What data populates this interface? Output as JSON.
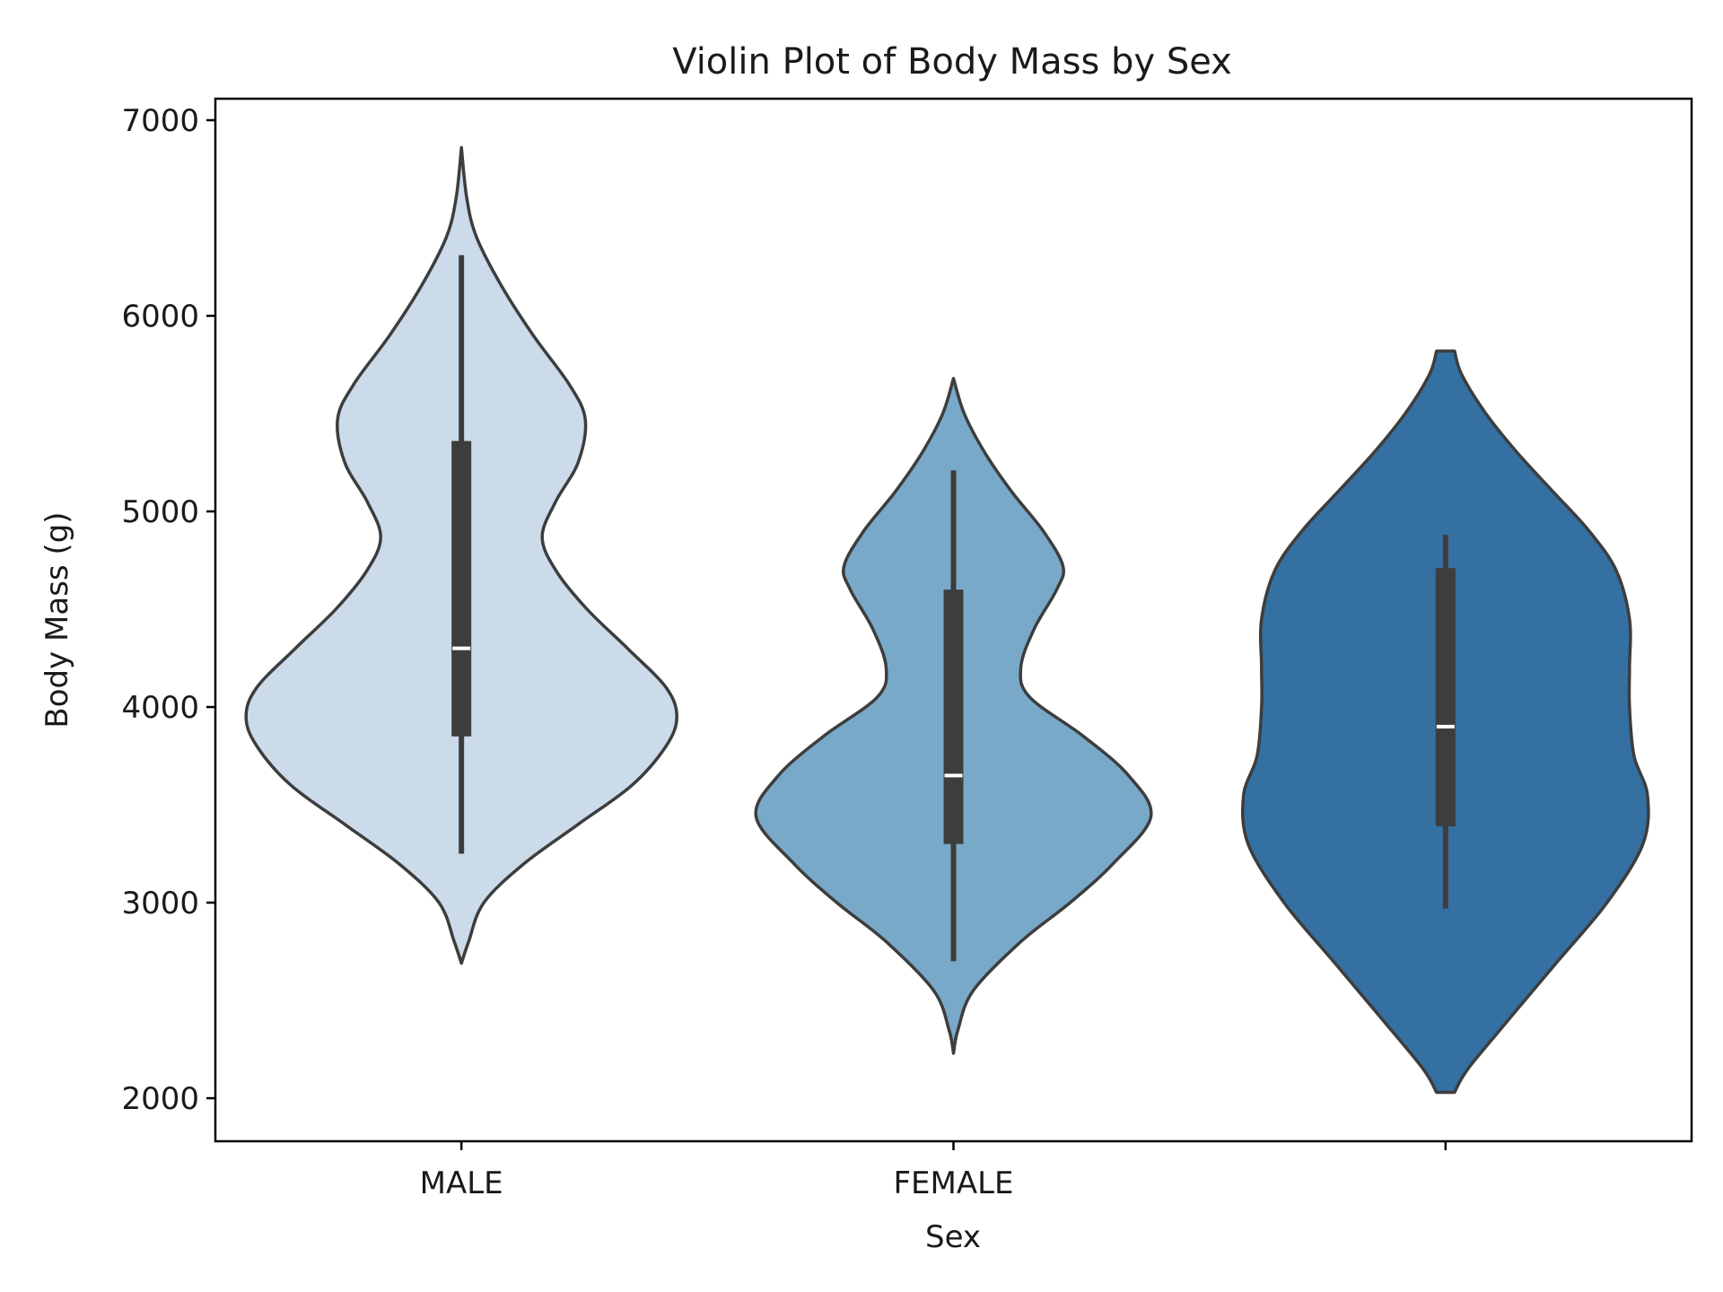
{
  "chart_data": {
    "type": "violin",
    "title": "Violin Plot of Body Mass by Sex",
    "xlabel": "Sex",
    "ylabel": "Body Mass (g)",
    "ylim": [
      1780,
      7110
    ],
    "yticks": [
      2000,
      3000,
      4000,
      5000,
      6000,
      7000
    ],
    "grid": false,
    "legend": "none",
    "outline_color": "#3d3d3d",
    "groups": [
      {
        "label": "MALE",
        "color": "#cbdbea",
        "density": [
          [
            2690,
            0
          ],
          [
            2800,
            8
          ],
          [
            3000,
            25
          ],
          [
            3200,
            70
          ],
          [
            3400,
            130
          ],
          [
            3600,
            190
          ],
          [
            3800,
            228
          ],
          [
            3950,
            240
          ],
          [
            4100,
            228
          ],
          [
            4300,
            185
          ],
          [
            4500,
            140
          ],
          [
            4700,
            105
          ],
          [
            4870,
            90
          ],
          [
            5050,
            105
          ],
          [
            5250,
            130
          ],
          [
            5470,
            138
          ],
          [
            5650,
            120
          ],
          [
            5900,
            80
          ],
          [
            6150,
            45
          ],
          [
            6400,
            17
          ],
          [
            6600,
            6
          ],
          [
            6860,
            0
          ]
        ],
        "whisker": [
          3250,
          6310
        ],
        "quartiles": [
          3850,
          5360
        ],
        "median": 4300
      },
      {
        "label": "FEMALE",
        "color": "#79a9c9",
        "density": [
          [
            2230,
            0
          ],
          [
            2350,
            5
          ],
          [
            2550,
            22
          ],
          [
            2800,
            75
          ],
          [
            3000,
            130
          ],
          [
            3200,
            178
          ],
          [
            3440,
            220
          ],
          [
            3650,
            195
          ],
          [
            3850,
            145
          ],
          [
            4050,
            85
          ],
          [
            4200,
            75
          ],
          [
            4400,
            90
          ],
          [
            4600,
            115
          ],
          [
            4720,
            122
          ],
          [
            4900,
            100
          ],
          [
            5100,
            65
          ],
          [
            5300,
            35
          ],
          [
            5500,
            12
          ],
          [
            5680,
            0
          ]
        ],
        "whisker": [
          2700,
          5210
        ],
        "quartiles": [
          3300,
          4600
        ],
        "median": 3650
      },
      {
        "label": "",
        "color": "#3470a2",
        "density": [
          [
            2030,
            10
          ],
          [
            2150,
            25
          ],
          [
            2400,
            70
          ],
          [
            2700,
            125
          ],
          [
            3000,
            180
          ],
          [
            3300,
            220
          ],
          [
            3550,
            225
          ],
          [
            3750,
            210
          ],
          [
            4000,
            205
          ],
          [
            4200,
            205
          ],
          [
            4450,
            205
          ],
          [
            4700,
            190
          ],
          [
            4900,
            160
          ],
          [
            5100,
            120
          ],
          [
            5300,
            80
          ],
          [
            5500,
            45
          ],
          [
            5700,
            18
          ],
          [
            5820,
            10
          ]
        ],
        "whisker": [
          2970,
          4880
        ],
        "quartiles": [
          3390,
          4710
        ],
        "median": 3900
      }
    ]
  }
}
